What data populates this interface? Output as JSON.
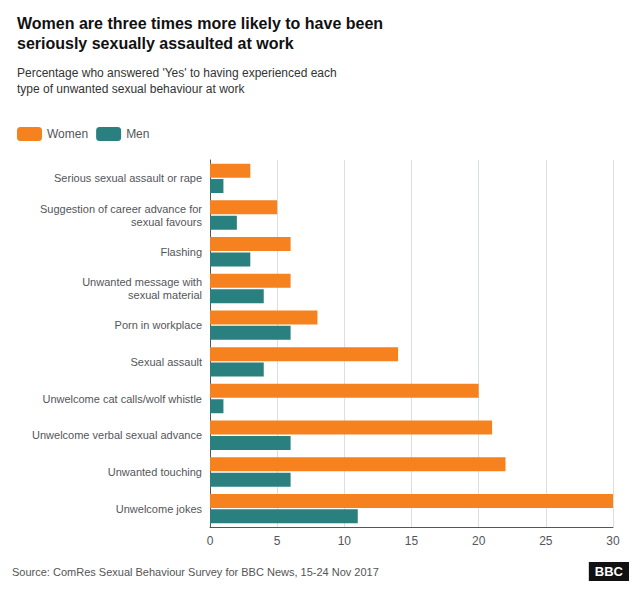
{
  "chart_data": {
    "type": "bar",
    "orientation": "horizontal",
    "title": "Women are three times more likely to have been\nseriously sexually assaulted at work",
    "subtitle": "Percentage who answered 'Yes' to having experienced each\ntype of unwanted sexual behaviour at work",
    "annotations": [
      "Source: ComRes Sexual Behaviour Survey for BBC News, 15-24 Nov 2017",
      "BBC"
    ],
    "categories": [
      "Unwelcome jokes",
      "Unwanted touching",
      "Unwelcome verbal sexual advance",
      "Unwelcome cat calls/wolf whistle",
      "Sexual assault",
      "Porn in workplace",
      "Unwanted message with\nsexual material",
      "Flashing",
      "Suggestion of career advance for\nsexual favours",
      "Serious sexual assault or rape"
    ],
    "series": [
      {
        "name": "Women",
        "color": "#f5821f",
        "values": [
          30,
          22,
          21,
          20,
          14,
          8,
          6,
          6,
          5,
          3
        ]
      },
      {
        "name": "Men",
        "color": "#2a7f7f",
        "values": [
          11,
          6,
          6,
          1,
          4,
          6,
          4,
          3,
          2,
          1
        ]
      }
    ],
    "xlim": [
      0,
      30
    ],
    "xticks": [
      0,
      5,
      10,
      15,
      20,
      25,
      30
    ],
    "grid": true,
    "legend": "upper left"
  }
}
